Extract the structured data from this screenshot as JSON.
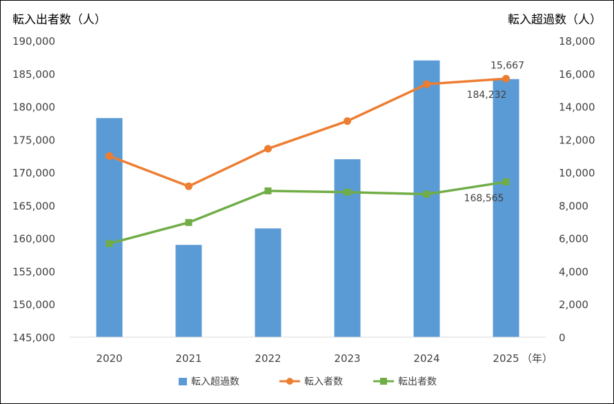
{
  "chart_data": {
    "type": "bar",
    "categories": [
      "2020",
      "2021",
      "2022",
      "2023",
      "2024",
      "2025"
    ],
    "x_unit": "（年）",
    "left_axis": {
      "title": "転入出者数（人）",
      "ylim": [
        145000,
        190000
      ],
      "ticks": [
        "145,000",
        "150,000",
        "155,000",
        "160,000",
        "165,000",
        "170,000",
        "175,000",
        "180,000",
        "185,000",
        "190,000"
      ]
    },
    "right_axis": {
      "title": "転入超過数（人）",
      "ylim": [
        0,
        18000
      ],
      "ticks": [
        "0",
        "2,000",
        "4,000",
        "6,000",
        "8,000",
        "10,000",
        "12,000",
        "14,000",
        "16,000",
        "18,000"
      ]
    },
    "series": [
      {
        "name": "転入超過数",
        "kind": "bar",
        "axis": "right",
        "color": "#5B9BD5",
        "values": [
          13300,
          5600,
          6600,
          10800,
          16800,
          15667
        ]
      },
      {
        "name": "転入者数",
        "kind": "line",
        "axis": "left",
        "color": "#ED7D31",
        "marker": "circle",
        "values": [
          172500,
          167900,
          173600,
          177800,
          183400,
          184232
        ]
      },
      {
        "name": "転出者数",
        "kind": "line",
        "axis": "left",
        "color": "#70AD47",
        "marker": "square",
        "values": [
          159200,
          162400,
          167200,
          167000,
          166700,
          168565
        ]
      }
    ],
    "data_labels": [
      {
        "series": "転入超過数",
        "index": 5,
        "text": "15,667"
      },
      {
        "series": "転入者数",
        "index": 5,
        "text": "184,232"
      },
      {
        "series": "転出者数",
        "index": 5,
        "text": "168,565"
      }
    ],
    "legend_placement": "bottom",
    "grid": false
  }
}
